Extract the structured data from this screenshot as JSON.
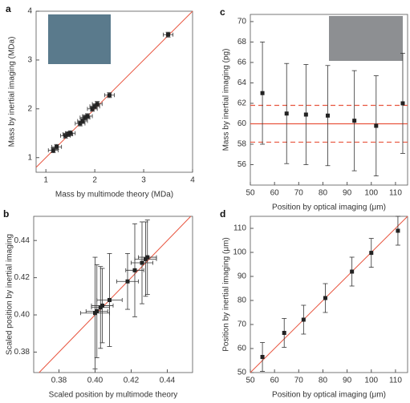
{
  "chart_data": [
    {
      "type": "scatter",
      "panel": "a",
      "xlabel": "Mass by multimode theory (MDa)",
      "ylabel": "Mass by inertial imaging (MDa)",
      "xlim": [
        0.8,
        4
      ],
      "ylim": [
        0.7,
        4
      ],
      "xticks": [
        1,
        2,
        3,
        4
      ],
      "yticks": [
        1,
        2,
        3,
        4
      ],
      "x": [
        1.15,
        1.22,
        1.4,
        1.45,
        1.5,
        1.7,
        1.75,
        1.8,
        1.85,
        1.95,
        2.0,
        2.05,
        2.3,
        3.5
      ],
      "values": [
        1.15,
        1.22,
        1.45,
        1.48,
        1.5,
        1.7,
        1.75,
        1.82,
        1.85,
        2.0,
        2.05,
        2.1,
        2.28,
        3.52
      ],
      "xerr": [
        0.1,
        0.1,
        0.1,
        0.1,
        0.1,
        0.1,
        0.1,
        0.1,
        0.1,
        0.1,
        0.1,
        0.1,
        0.1,
        0.1
      ],
      "yerr": [
        0.05,
        0.05,
        0.05,
        0.05,
        0.05,
        0.05,
        0.05,
        0.05,
        0.05,
        0.05,
        0.05,
        0.05,
        0.05,
        0.05
      ],
      "color": "#222222",
      "line_color": "#e8553f",
      "ref_line": "diagonal"
    },
    {
      "type": "scatter",
      "panel": "c",
      "xlabel": "Position by optical imaging (μm)",
      "ylabel": "Mass by inertial imaging (pg)",
      "xlim": [
        50,
        115
      ],
      "ylim": [
        54,
        70.7
      ],
      "xticks": [
        50,
        60,
        70,
        80,
        90,
        100,
        110
      ],
      "yticks": [
        56,
        58,
        60,
        62,
        64,
        66,
        68,
        70
      ],
      "x": [
        55,
        65,
        73,
        82,
        93,
        102,
        113
      ],
      "values": [
        63,
        61,
        60.9,
        60.8,
        60.3,
        59.8,
        62
      ],
      "yerr": [
        5,
        4.9,
        4.9,
        4.9,
        4.9,
        4.9,
        4.9
      ],
      "color": "#222222",
      "line_color": "#e8553f",
      "hlines": [
        {
          "value": 60,
          "style": "solid"
        },
        {
          "value": 61.8,
          "style": "dashed"
        },
        {
          "value": 58.2,
          "style": "dashed"
        }
      ]
    },
    {
      "type": "scatter",
      "panel": "b",
      "xlabel": "Scaled position by multimode theory",
      "ylabel": "Scaled position by inertial imaging",
      "xlim": [
        0.366,
        0.454
      ],
      "ylim": [
        0.369,
        0.453
      ],
      "xticks": [
        0.38,
        {
          "value": 0.4,
          "label": "0.40"
        },
        0.42,
        0.44
      ],
      "yticks": [
        0.38,
        {
          "value": 0.4,
          "label": "0.40"
        },
        0.42,
        0.44
      ],
      "x": [
        0.4,
        0.401,
        0.403,
        0.404,
        0.408,
        0.418,
        0.422,
        0.426,
        0.428,
        0.429
      ],
      "values": [
        0.401,
        0.402,
        0.404,
        0.405,
        0.408,
        0.418,
        0.424,
        0.428,
        0.43,
        0.431
      ],
      "xerr": [
        0.008,
        0.006,
        0.005,
        0.006,
        0.007,
        0.006,
        0.005,
        0.006,
        0.006,
        0.005
      ],
      "yerr": [
        0.03,
        0.025,
        0.022,
        0.02,
        0.025,
        0.015,
        0.025,
        0.022,
        0.02,
        0.02
      ],
      "color": "#222222",
      "line_color": "#e8553f",
      "ref_line": "diagonal"
    },
    {
      "type": "scatter",
      "panel": "d",
      "xlabel": "Position by optical imaging (μm)",
      "ylabel": "Position by inertial imaging (μm)",
      "xlim": [
        50,
        115
      ],
      "ylim": [
        50,
        115
      ],
      "xticks": [
        50,
        60,
        70,
        80,
        90,
        100,
        110
      ],
      "yticks": [
        50,
        60,
        70,
        80,
        90,
        100,
        110
      ],
      "x": [
        55,
        64,
        72,
        81,
        92,
        100,
        111
      ],
      "values": [
        56.5,
        66.5,
        72,
        81,
        92,
        99.8,
        109
      ],
      "yerr": [
        6,
        6,
        6,
        6,
        6,
        6,
        6
      ],
      "color": "#222222",
      "line_color": "#e8553f",
      "ref_line": "diagonal"
    }
  ]
}
